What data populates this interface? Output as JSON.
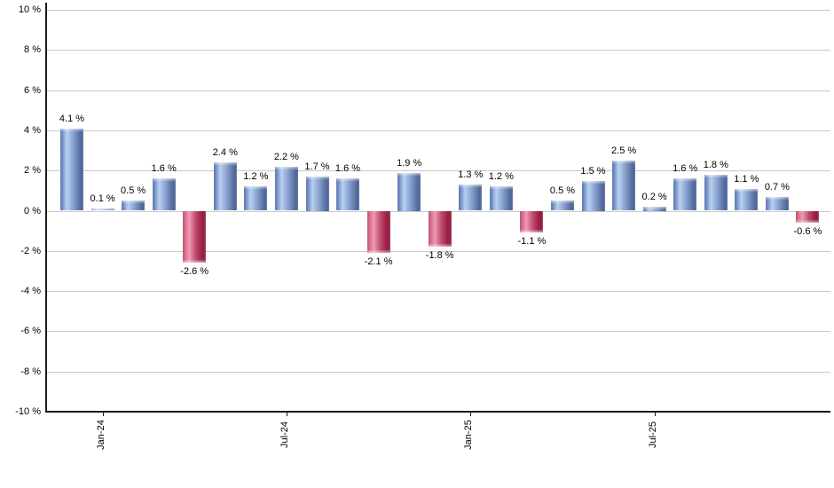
{
  "chart_data": {
    "type": "bar",
    "title": "",
    "unit": "%",
    "values": [
      4.1,
      0.1,
      0.5,
      1.6,
      -2.6,
      2.4,
      1.2,
      2.2,
      1.7,
      1.6,
      -2.1,
      1.9,
      -1.8,
      1.3,
      1.2,
      -1.1,
      0.5,
      1.5,
      2.5,
      0.2,
      1.6,
      1.8,
      1.1,
      0.7,
      -0.6
    ],
    "bar_labels": [
      "4.1 %",
      "0.1 %",
      "0.5 %",
      "1.6 %",
      "-2.6 %",
      "2.4 %",
      "1.2 %",
      "2.2 %",
      "1.7 %",
      "1.6 %",
      "-2.1 %",
      "1.9 %",
      "-1.8 %",
      "1.3 %",
      "1.2 %",
      "-1.1 %",
      "0.5 %",
      "1.5 %",
      "2.5 %",
      "0.2 %",
      "1.6 %",
      "1.8 %",
      "1.1 %",
      "0.7 %",
      "-0.6 %"
    ],
    "x_ticks": [
      {
        "label": "Jan-24",
        "bar_index": 1
      },
      {
        "label": "Jul-24",
        "bar_index": 7
      },
      {
        "label": "Jan-25",
        "bar_index": 13
      },
      {
        "label": "Jul-25",
        "bar_index": 19
      }
    ],
    "y_ticks": [
      {
        "label": "10 %",
        "value": 10
      },
      {
        "label": "8 %",
        "value": 8
      },
      {
        "label": "6 %",
        "value": 6
      },
      {
        "label": "4 %",
        "value": 4
      },
      {
        "label": "2 %",
        "value": 2
      },
      {
        "label": "0 %",
        "value": 0
      },
      {
        "label": "-2 %",
        "value": -2
      },
      {
        "label": "-4 %",
        "value": -4
      },
      {
        "label": "-6 %",
        "value": -6
      },
      {
        "label": "-8 %",
        "value": -8
      },
      {
        "label": "-10 %",
        "value": -10
      }
    ],
    "ylim": [
      -10,
      10
    ],
    "grid": true,
    "legend": false,
    "colors": {
      "positive_gradient": [
        "#3c5890",
        "#6e8dc4",
        "#b9d0f0",
        "#8aa3d0",
        "#5c74a6",
        "#415a8e"
      ],
      "negative_gradient": [
        "#a82a4e",
        "#d2678a",
        "#ef9ab0",
        "#c14e72",
        "#9c2146",
        "#8c1b3a"
      ],
      "gridline": "#c9c9c9",
      "axis": "#1a1a1a",
      "text": "#000000",
      "background": "#ffffff"
    }
  }
}
